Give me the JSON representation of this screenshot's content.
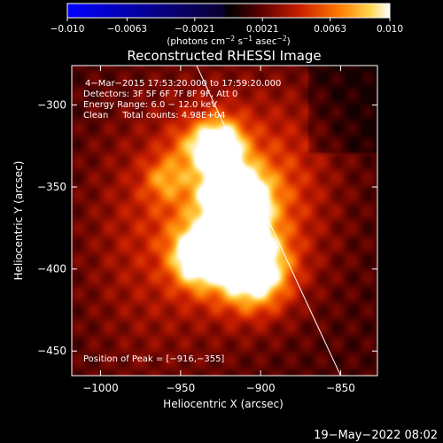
{
  "chart_data": {
    "type": "heatmap",
    "title": "Reconstructed RHESSI Image",
    "xlabel": "Heliocentric X (arcsec)",
    "ylabel": "Heliocentric Y (arcsec)",
    "xlim": [
      -1018,
      -827
    ],
    "ylim": [
      -465,
      -276
    ],
    "x_ticks": [
      {
        "value": -1000,
        "label": "−1000"
      },
      {
        "value": -950,
        "label": "−950"
      },
      {
        "value": -900,
        "label": "−900"
      },
      {
        "value": -850,
        "label": "−850"
      }
    ],
    "y_ticks": [
      {
        "value": -300,
        "label": "−300"
      },
      {
        "value": -350,
        "label": "−350"
      },
      {
        "value": -400,
        "label": "−400"
      },
      {
        "value": -450,
        "label": "−450"
      }
    ],
    "colorbar": {
      "range": [
        -0.01,
        0.01
      ],
      "ticks": [
        {
          "value": -0.01,
          "label": "−0.010"
        },
        {
          "value": -0.0063,
          "label": "−0.0063"
        },
        {
          "value": -0.0021,
          "label": "−0.0021"
        },
        {
          "value": 0.0021,
          "label": "0.0021"
        },
        {
          "value": 0.0063,
          "label": "0.0063"
        },
        {
          "value": 0.01,
          "label": "0.010"
        }
      ],
      "unit_prefix": "(photons cm",
      "unit_sup1": "−2",
      "unit_mid": " s",
      "unit_sup2": "−1",
      "unit_mid2": " asec",
      "unit_sup3": "−2",
      "unit_suffix": ")",
      "colors": [
        "#0000ff",
        "#000000",
        "#5a0000",
        "#c81e00",
        "#ff7800",
        "#ffd750",
        "#ffffff"
      ]
    },
    "annotations": [
      "4−Mar−2015 17:53:20.000 to 17:59:20.000",
      "Detectors: 3F 5F 6F 7F 8F 9F, Att 0",
      "Energy Range: 6.0 − 12.0 keV",
      "Clean     Total counts: 4.98E+04"
    ],
    "peak_label": "Position of Peak = [−916,−355]",
    "peak": [
      -916,
      -355
    ],
    "limb": [
      [
        -940,
        -276
      ],
      [
        -850,
        -465
      ]
    ],
    "sources": [
      {
        "x": -916,
        "y": -355,
        "sx": 14,
        "sy": 12,
        "amp": 0.01
      },
      {
        "x": -926,
        "y": -325,
        "sx": 11,
        "sy": 12,
        "amp": 0.0085
      },
      {
        "x": -940,
        "y": -392,
        "sx": 11,
        "sy": 13,
        "amp": 0.008
      },
      {
        "x": -905,
        "y": -402,
        "sx": 16,
        "sy": 16,
        "amp": 0.009
      },
      {
        "x": -914,
        "y": -378,
        "sx": 12,
        "sy": 14,
        "amp": 0.007
      },
      {
        "x": -920,
        "y": -360,
        "sx": 38,
        "sy": 48,
        "amp": 0.0045
      },
      {
        "x": -960,
        "y": -345,
        "sx": 9,
        "sy": 9,
        "amp": 0.0032
      },
      {
        "x": -945,
        "y": -325,
        "sx": 10,
        "sy": 10,
        "amp": 0.002
      },
      {
        "x": -975,
        "y": -390,
        "sx": 30,
        "sy": 60,
        "amp": 0.0018
      },
      {
        "x": -880,
        "y": -345,
        "sx": 20,
        "sy": 40,
        "amp": 0.0015
      }
    ]
  },
  "timestamp": "19−May−2022 08:02"
}
